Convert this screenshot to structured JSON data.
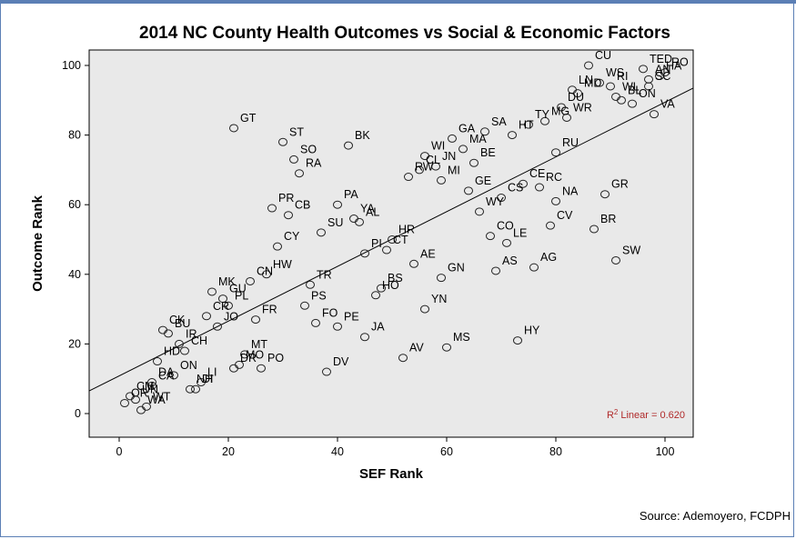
{
  "source": "Source: Ademoyero, FCDPH",
  "chart_data": {
    "type": "scatter",
    "title": "2014 NC County Health Outcomes vs Social & Economic Factors",
    "xlabel": "SEF Rank",
    "ylabel": "Outcome Rank",
    "xlim": [
      -5,
      105
    ],
    "ylim": [
      -5,
      105
    ],
    "xticks": [
      0,
      20,
      40,
      60,
      80,
      100
    ],
    "yticks": [
      0,
      20,
      40,
      60,
      80,
      100
    ],
    "fit_line": {
      "type": "linear",
      "r2_label": "Linear = 0.620",
      "r2_prefix": "R",
      "r2_sup": "2",
      "y_at_x_min5": 6.5,
      "y_at_x_105": 93.5
    },
    "points": [
      {
        "label": "OR",
        "x": 1,
        "y": 3
      },
      {
        "label": "CM",
        "x": 2,
        "y": 5
      },
      {
        "label": "UN",
        "x": 3,
        "y": 4
      },
      {
        "label": "WA",
        "x": 4,
        "y": 1
      },
      {
        "label": "WT",
        "x": 5,
        "y": 2
      },
      {
        "label": "DA",
        "x": 6,
        "y": 9
      },
      {
        "label": "CA",
        "x": 6,
        "y": 8
      },
      {
        "label": "HD",
        "x": 7,
        "y": 15
      },
      {
        "label": "CK",
        "x": 8,
        "y": 24
      },
      {
        "label": "BU",
        "x": 9,
        "y": 23
      },
      {
        "label": "ON",
        "x": 10,
        "y": 11
      },
      {
        "label": "IR",
        "x": 11,
        "y": 20
      },
      {
        "label": "CH",
        "x": 12,
        "y": 18
      },
      {
        "label": "NH",
        "x": 13,
        "y": 7
      },
      {
        "label": "DI",
        "x": 14,
        "y": 7
      },
      {
        "label": "LI",
        "x": 15,
        "y": 9
      },
      {
        "label": "CR",
        "x": 16,
        "y": 28
      },
      {
        "label": "MK",
        "x": 17,
        "y": 35
      },
      {
        "label": "JO",
        "x": 18,
        "y": 25
      },
      {
        "label": "GU",
        "x": 19,
        "y": 33
      },
      {
        "label": "PL",
        "x": 20,
        "y": 31
      },
      {
        "label": "DR",
        "x": 21,
        "y": 13
      },
      {
        "label": "GT",
        "x": 21,
        "y": 82
      },
      {
        "label": "MO",
        "x": 22,
        "y": 14
      },
      {
        "label": "MT",
        "x": 23,
        "y": 17
      },
      {
        "label": "CN",
        "x": 24,
        "y": 38
      },
      {
        "label": "FR",
        "x": 25,
        "y": 27
      },
      {
        "label": "PO",
        "x": 26,
        "y": 13
      },
      {
        "label": "HW",
        "x": 27,
        "y": 40
      },
      {
        "label": "PR",
        "x": 28,
        "y": 59
      },
      {
        "label": "CY",
        "x": 29,
        "y": 48
      },
      {
        "label": "ST",
        "x": 30,
        "y": 78
      },
      {
        "label": "CB",
        "x": 31,
        "y": 57
      },
      {
        "label": "SO",
        "x": 32,
        "y": 73
      },
      {
        "label": "RA",
        "x": 33,
        "y": 69
      },
      {
        "label": "PS",
        "x": 34,
        "y": 31
      },
      {
        "label": "TR",
        "x": 35,
        "y": 37
      },
      {
        "label": "FO",
        "x": 36,
        "y": 26
      },
      {
        "label": "SU",
        "x": 37,
        "y": 52
      },
      {
        "label": "DV",
        "x": 38,
        "y": 12
      },
      {
        "label": "BK",
        "x": 42,
        "y": 77
      },
      {
        "label": "PA",
        "x": 40,
        "y": 60
      },
      {
        "label": "YA",
        "x": 43,
        "y": 56
      },
      {
        "label": "PE",
        "x": 40,
        "y": 25
      },
      {
        "label": "AL",
        "x": 44,
        "y": 55
      },
      {
        "label": "JA",
        "x": 45,
        "y": 22
      },
      {
        "label": "PI",
        "x": 45,
        "y": 46
      },
      {
        "label": "HO",
        "x": 47,
        "y": 34
      },
      {
        "label": "HR",
        "x": 50,
        "y": 50
      },
      {
        "label": "CT",
        "x": 49,
        "y": 47
      },
      {
        "label": "BS",
        "x": 48,
        "y": 36
      },
      {
        "label": "AE",
        "x": 54,
        "y": 43
      },
      {
        "label": "YN",
        "x": 56,
        "y": 30
      },
      {
        "label": "AV",
        "x": 52,
        "y": 16
      },
      {
        "label": "GN",
        "x": 59,
        "y": 39
      },
      {
        "label": "MS",
        "x": 60,
        "y": 19
      },
      {
        "label": "WI",
        "x": 56,
        "y": 74
      },
      {
        "label": "RW",
        "x": 53,
        "y": 68
      },
      {
        "label": "CL",
        "x": 55,
        "y": 70
      },
      {
        "label": "JN",
        "x": 58,
        "y": 71
      },
      {
        "label": "GA",
        "x": 61,
        "y": 79
      },
      {
        "label": "MA",
        "x": 63,
        "y": 76
      },
      {
        "label": "BE",
        "x": 65,
        "y": 72
      },
      {
        "label": "MI",
        "x": 59,
        "y": 67
      },
      {
        "label": "GE",
        "x": 64,
        "y": 64
      },
      {
        "label": "WY",
        "x": 66,
        "y": 58
      },
      {
        "label": "SA",
        "x": 67,
        "y": 81
      },
      {
        "label": "CS",
        "x": 70,
        "y": 62
      },
      {
        "label": "LE",
        "x": 71,
        "y": 49
      },
      {
        "label": "CO",
        "x": 68,
        "y": 51
      },
      {
        "label": "AS",
        "x": 69,
        "y": 41
      },
      {
        "label": "HY",
        "x": 73,
        "y": 21
      },
      {
        "label": "TY",
        "x": 75,
        "y": 83
      },
      {
        "label": "HT",
        "x": 72,
        "y": 80
      },
      {
        "label": "RC",
        "x": 77,
        "y": 65
      },
      {
        "label": "CE",
        "x": 74,
        "y": 66
      },
      {
        "label": "AG",
        "x": 76,
        "y": 42
      },
      {
        "label": "MG",
        "x": 78,
        "y": 84
      },
      {
        "label": "CV",
        "x": 79,
        "y": 54
      },
      {
        "label": "WR",
        "x": 82,
        "y": 85
      },
      {
        "label": "RU",
        "x": 80,
        "y": 75
      },
      {
        "label": "NA",
        "x": 80,
        "y": 61
      },
      {
        "label": "DU",
        "x": 81,
        "y": 88
      },
      {
        "label": "LN",
        "x": 83,
        "y": 93
      },
      {
        "label": "MD",
        "x": 84,
        "y": 92
      },
      {
        "label": "CU",
        "x": 86,
        "y": 100
      },
      {
        "label": "BR",
        "x": 87,
        "y": 53
      },
      {
        "label": "WS",
        "x": 88,
        "y": 95
      },
      {
        "label": "GR",
        "x": 89,
        "y": 63
      },
      {
        "label": "RI",
        "x": 90,
        "y": 94
      },
      {
        "label": "SW",
        "x": 91,
        "y": 44
      },
      {
        "label": "WL",
        "x": 91,
        "y": 91
      },
      {
        "label": "BL",
        "x": 92,
        "y": 90
      },
      {
        "label": "ON",
        "x": 94,
        "y": 89
      },
      {
        "label": "TED",
        "x": 96,
        "y": 99
      },
      {
        "label": "AN",
        "x": 97,
        "y": 96
      },
      {
        "label": "VA",
        "x": 98,
        "y": 86
      },
      {
        "label": "HA",
        "x": 99,
        "y": 97
      },
      {
        "label": "RO",
        "x": 100,
        "y": 98
      },
      {
        "label": "SC",
        "x": 97,
        "y": 94
      }
    ],
    "label_overrides_note": ""
  }
}
